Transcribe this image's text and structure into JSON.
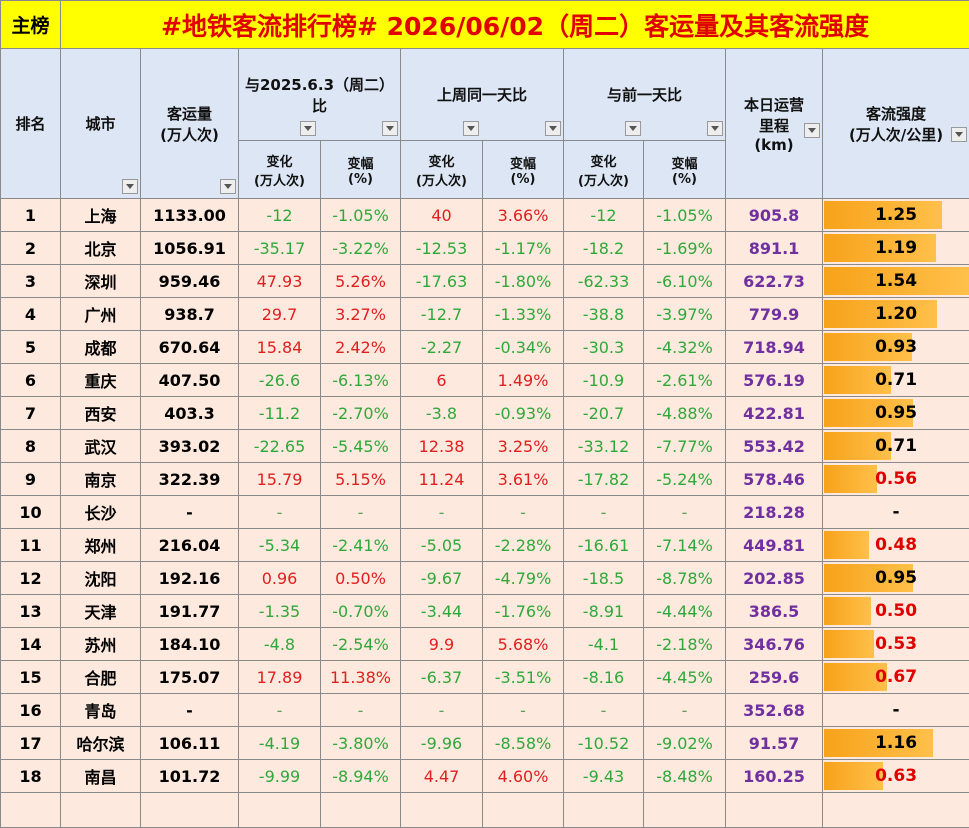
{
  "header": {
    "tag": "主榜",
    "title": "#地铁客流排行榜# 2026/06/02（周二）客运量及其客流强度"
  },
  "table": {
    "columns": {
      "rank": "排名",
      "city": "城市",
      "volume": [
        "客运量",
        "(万人次)"
      ],
      "group1": [
        "与2025.6.3（周二）",
        "比"
      ],
      "group2": "上周同一天比",
      "group3": "与前一天比",
      "mileage": [
        "本日运营",
        "里程",
        "(km)"
      ],
      "intensity": [
        "客流强度",
        "(万人次/公里)"
      ],
      "change": [
        "变化",
        "(万人次)"
      ],
      "pct": [
        "变幅",
        "(%)"
      ]
    },
    "rows": [
      [
        "1",
        "上海",
        "1133.00",
        "-12",
        "-1.05%",
        "40",
        "3.66%",
        "-12",
        "-1.05%",
        "905.8",
        "1.25"
      ],
      [
        "2",
        "北京",
        "1056.91",
        "-35.17",
        "-3.22%",
        "-12.53",
        "-1.17%",
        "-18.2",
        "-1.69%",
        "891.1",
        "1.19"
      ],
      [
        "3",
        "深圳",
        "959.46",
        "47.93",
        "5.26%",
        "-17.63",
        "-1.80%",
        "-62.33",
        "-6.10%",
        "622.73",
        "1.54"
      ],
      [
        "4",
        "广州",
        "938.7",
        "29.7",
        "3.27%",
        "-12.7",
        "-1.33%",
        "-38.8",
        "-3.97%",
        "779.9",
        "1.20"
      ],
      [
        "5",
        "成都",
        "670.64",
        "15.84",
        "2.42%",
        "-2.27",
        "-0.34%",
        "-30.3",
        "-4.32%",
        "718.94",
        "0.93"
      ],
      [
        "6",
        "重庆",
        "407.50",
        "-26.6",
        "-6.13%",
        "6",
        "1.49%",
        "-10.9",
        "-2.61%",
        "576.19",
        "0.71"
      ],
      [
        "7",
        "西安",
        "403.3",
        "-11.2",
        "-2.70%",
        "-3.8",
        "-0.93%",
        "-20.7",
        "-4.88%",
        "422.81",
        "0.95"
      ],
      [
        "8",
        "武汉",
        "393.02",
        "-22.65",
        "-5.45%",
        "12.38",
        "3.25%",
        "-33.12",
        "-7.77%",
        "553.42",
        "0.71"
      ],
      [
        "9",
        "南京",
        "322.39",
        "15.79",
        "5.15%",
        "11.24",
        "3.61%",
        "-17.82",
        "-5.24%",
        "578.46",
        "0.56"
      ],
      [
        "10",
        "长沙",
        "-",
        "-",
        "-",
        "-",
        "-",
        "-",
        "-",
        "218.28",
        "-"
      ],
      [
        "11",
        "郑州",
        "216.04",
        "-5.34",
        "-2.41%",
        "-5.05",
        "-2.28%",
        "-16.61",
        "-7.14%",
        "449.81",
        "0.48"
      ],
      [
        "12",
        "沈阳",
        "192.16",
        "0.96",
        "0.50%",
        "-9.67",
        "-4.79%",
        "-18.5",
        "-8.78%",
        "202.85",
        "0.95"
      ],
      [
        "13",
        "天津",
        "191.77",
        "-1.35",
        "-0.70%",
        "-3.44",
        "-1.76%",
        "-8.91",
        "-4.44%",
        "386.5",
        "0.50"
      ],
      [
        "14",
        "苏州",
        "184.10",
        "-4.8",
        "-2.54%",
        "9.9",
        "5.68%",
        "-4.1",
        "-2.18%",
        "346.76",
        "0.53"
      ],
      [
        "15",
        "合肥",
        "175.07",
        "17.89",
        "11.38%",
        "-6.37",
        "-3.51%",
        "-8.16",
        "-4.45%",
        "259.6",
        "0.67"
      ],
      [
        "16",
        "青岛",
        "-",
        "-",
        "-",
        "-",
        "-",
        "-",
        "-",
        "352.68",
        "-"
      ],
      [
        "17",
        "哈尔滨",
        "106.11",
        "-4.19",
        "-3.80%",
        "-9.96",
        "-8.58%",
        "-10.52",
        "-9.02%",
        "91.57",
        "1.16"
      ],
      [
        "18",
        "南昌",
        "101.72",
        "-9.99",
        "-8.94%",
        "4.47",
        "4.60%",
        "-9.43",
        "-8.48%",
        "160.25",
        "0.63"
      ]
    ]
  }
}
